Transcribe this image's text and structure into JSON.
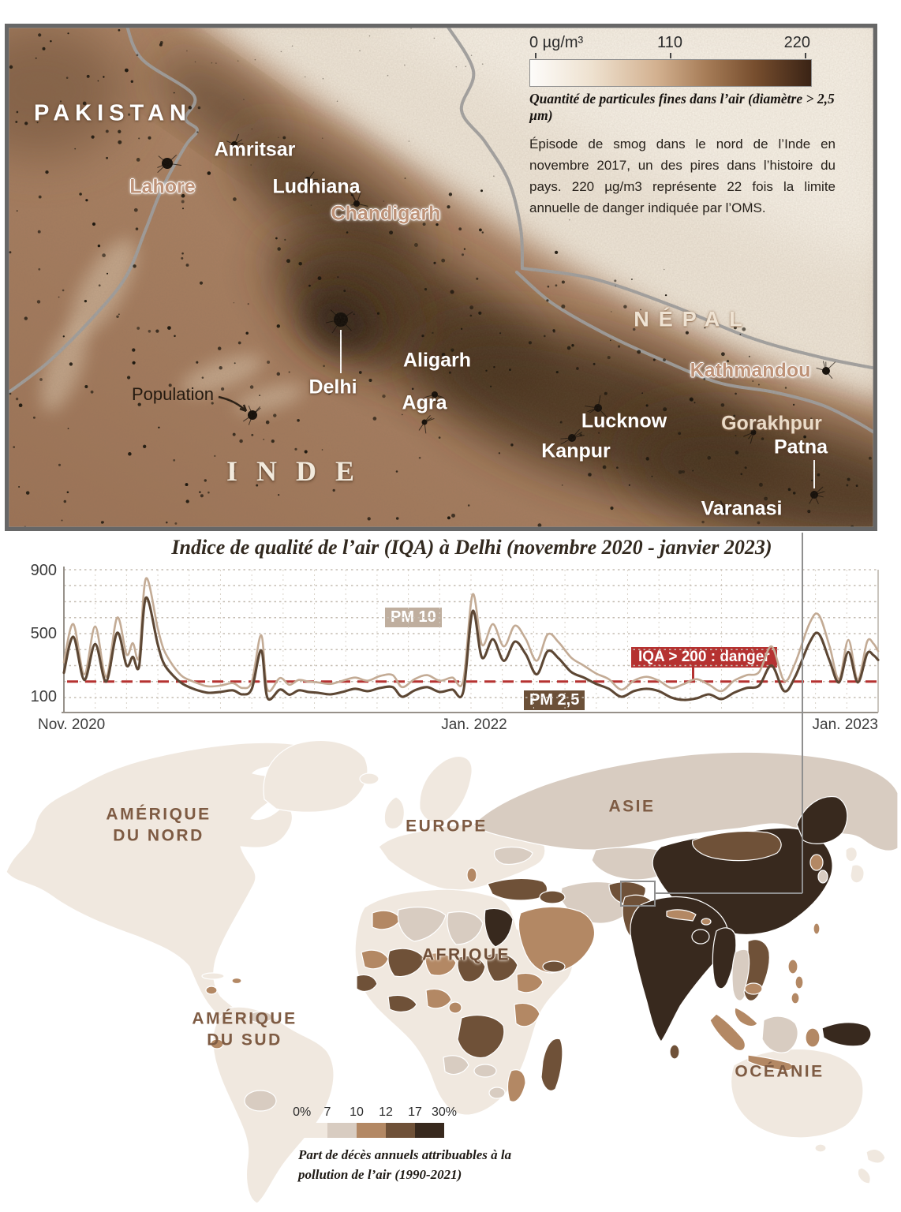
{
  "top_map": {
    "scale_legend": {
      "unit_ticks": [
        "0 µg/m³",
        "110",
        "220"
      ],
      "caption": "Quantité de particules fines dans l’air (diamètre > 2,5 µm)",
      "description": "Épisode de smog dans le nord de l’Inde en novembre 2017, un des pires dans l’histoire du pays. 220 µg/m3 représente 22 fois la limite annuelle de danger indiquée par l’OMS.",
      "gradient": [
        "#fdfcfa",
        "#eee1cf",
        "#d3b190",
        "#a87e59",
        "#774e2e",
        "#3a2315"
      ]
    },
    "palette": {
      "plains": "#ad8466",
      "dark_plains": "#7c5a40",
      "mountains": "#efe6d8",
      "snow": "#f8f2e7",
      "smog": "#46311f",
      "border_line": "#a0a0a0"
    },
    "labels": [
      {
        "id": "pakistan",
        "text": "PAKISTAN"
      },
      {
        "id": "inde",
        "text": "INDE"
      },
      {
        "id": "nepal",
        "text": "NÉPAL"
      },
      {
        "id": "amritsar",
        "text": "Amritsar"
      },
      {
        "id": "lahore",
        "text": "Lahore"
      },
      {
        "id": "ludhiana",
        "text": "Ludhiana"
      },
      {
        "id": "chandigarh",
        "text": "Chandigarh"
      },
      {
        "id": "delhi",
        "text": "Delhi"
      },
      {
        "id": "aligarh",
        "text": "Aligarh"
      },
      {
        "id": "agra",
        "text": "Agra"
      },
      {
        "id": "lucknow",
        "text": "Lucknow"
      },
      {
        "id": "kanpur",
        "text": "Kanpur"
      },
      {
        "id": "gorakhpur",
        "text": "Gorakhpur"
      },
      {
        "id": "patna",
        "text": "Patna"
      },
      {
        "id": "varanasi",
        "text": "Varanasi"
      },
      {
        "id": "kathmandou",
        "text": "Kathmandou"
      },
      {
        "id": "population",
        "text": "Population"
      }
    ]
  },
  "chart_data": {
    "type": "line",
    "title": "Indice de qualité de l’air (IQA) à Delhi (novembre 2020 - janvier 2023)",
    "x_axis": {
      "tick_labels": [
        "Nov. 2020",
        "Jan. 2022",
        "Jan. 2023"
      ],
      "range_months": [
        0,
        26
      ],
      "gridlines": "monthly"
    },
    "y_axis": {
      "tick_labels": [
        900,
        500,
        100
      ],
      "range": [
        0,
        900
      ],
      "gridline_step": 100
    },
    "threshold": {
      "value": 200,
      "label": "IQA > 200 : danger",
      "color": "#b53231"
    },
    "series": [
      {
        "name": "PM 10",
        "color": "#c3ab95",
        "points": [
          [
            0,
            320
          ],
          [
            0.3,
            560
          ],
          [
            0.65,
            245
          ],
          [
            1.0,
            545
          ],
          [
            1.35,
            230
          ],
          [
            1.7,
            600
          ],
          [
            2.0,
            370
          ],
          [
            2.2,
            440
          ],
          [
            2.4,
            355
          ],
          [
            2.62,
            845
          ],
          [
            3.0,
            530
          ],
          [
            3.2,
            395
          ],
          [
            3.5,
            295
          ],
          [
            3.8,
            230
          ],
          [
            4.2,
            195
          ],
          [
            4.6,
            170
          ],
          [
            5.0,
            175
          ],
          [
            5.4,
            190
          ],
          [
            5.7,
            160
          ],
          [
            6.0,
            200
          ],
          [
            6.3,
            490
          ],
          [
            6.5,
            150
          ],
          [
            6.9,
            222
          ],
          [
            7.2,
            180
          ],
          [
            7.5,
            210
          ],
          [
            7.8,
            200
          ],
          [
            8.1,
            195
          ],
          [
            8.5,
            185
          ],
          [
            8.9,
            205
          ],
          [
            9.3,
            225
          ],
          [
            9.7,
            205
          ],
          [
            10.1,
            235
          ],
          [
            10.5,
            240
          ],
          [
            10.8,
            165
          ],
          [
            11.2,
            215
          ],
          [
            11.6,
            240
          ],
          [
            12.0,
            205
          ],
          [
            12.4,
            225
          ],
          [
            12.75,
            205
          ],
          [
            13.05,
            745
          ],
          [
            13.35,
            430
          ],
          [
            13.7,
            560
          ],
          [
            14.05,
            420
          ],
          [
            14.4,
            550
          ],
          [
            14.75,
            465
          ],
          [
            15.1,
            330
          ],
          [
            15.45,
            495
          ],
          [
            15.8,
            445
          ],
          [
            16.2,
            350
          ],
          [
            16.6,
            300
          ],
          [
            17.0,
            250
          ],
          [
            17.4,
            215
          ],
          [
            17.8,
            150
          ],
          [
            18.2,
            205
          ],
          [
            18.6,
            230
          ],
          [
            19.0,
            205
          ],
          [
            19.4,
            160
          ],
          [
            19.8,
            185
          ],
          [
            20.2,
            215
          ],
          [
            20.6,
            180
          ],
          [
            21.0,
            140
          ],
          [
            21.4,
            205
          ],
          [
            21.8,
            240
          ],
          [
            22.2,
            260
          ],
          [
            22.6,
            420
          ],
          [
            23.0,
            205
          ],
          [
            23.35,
            315
          ],
          [
            23.8,
            560
          ],
          [
            24.1,
            618
          ],
          [
            24.45,
            420
          ],
          [
            24.75,
            215
          ],
          [
            25.05,
            460
          ],
          [
            25.35,
            215
          ],
          [
            25.65,
            450
          ],
          [
            25.85,
            438
          ],
          [
            26,
            390
          ]
        ]
      },
      {
        "name": "PM 2,5",
        "color": "#5d4734",
        "points": [
          [
            0,
            255
          ],
          [
            0.3,
            480
          ],
          [
            0.65,
            210
          ],
          [
            1.0,
            435
          ],
          [
            1.35,
            200
          ],
          [
            1.7,
            505
          ],
          [
            2.0,
            300
          ],
          [
            2.2,
            355
          ],
          [
            2.4,
            295
          ],
          [
            2.62,
            725
          ],
          [
            3.0,
            430
          ],
          [
            3.2,
            310
          ],
          [
            3.5,
            235
          ],
          [
            3.8,
            185
          ],
          [
            4.2,
            150
          ],
          [
            4.6,
            130
          ],
          [
            5.0,
            135
          ],
          [
            5.4,
            145
          ],
          [
            5.7,
            120
          ],
          [
            6.0,
            155
          ],
          [
            6.3,
            395
          ],
          [
            6.5,
            98
          ],
          [
            6.9,
            150
          ],
          [
            7.2,
            118
          ],
          [
            7.5,
            145
          ],
          [
            7.8,
            135
          ],
          [
            8.1,
            130
          ],
          [
            8.5,
            120
          ],
          [
            8.9,
            135
          ],
          [
            9.3,
            155
          ],
          [
            9.7,
            140
          ],
          [
            10.1,
            160
          ],
          [
            10.5,
            165
          ],
          [
            10.8,
            105
          ],
          [
            11.2,
            145
          ],
          [
            11.6,
            165
          ],
          [
            12.0,
            135
          ],
          [
            12.4,
            150
          ],
          [
            12.75,
            135
          ],
          [
            13.05,
            640
          ],
          [
            13.35,
            350
          ],
          [
            13.7,
            465
          ],
          [
            14.05,
            330
          ],
          [
            14.4,
            450
          ],
          [
            14.75,
            370
          ],
          [
            15.1,
            245
          ],
          [
            15.45,
            390
          ],
          [
            15.8,
            345
          ],
          [
            16.2,
            260
          ],
          [
            16.6,
            225
          ],
          [
            17.0,
            185
          ],
          [
            17.4,
            155
          ],
          [
            17.8,
            105
          ],
          [
            18.2,
            140
          ],
          [
            18.6,
            155
          ],
          [
            19.0,
            140
          ],
          [
            19.4,
            100
          ],
          [
            19.8,
            85
          ],
          [
            20.2,
            95
          ],
          [
            20.6,
            120
          ],
          [
            21.0,
            90
          ],
          [
            21.4,
            130
          ],
          [
            21.8,
            160
          ],
          [
            22.2,
            175
          ],
          [
            22.6,
            300
          ],
          [
            23.0,
            140
          ],
          [
            23.35,
            230
          ],
          [
            23.8,
            440
          ],
          [
            24.1,
            500
          ],
          [
            24.45,
            330
          ],
          [
            24.75,
            195
          ],
          [
            25.05,
            385
          ],
          [
            25.35,
            195
          ],
          [
            25.65,
            375
          ],
          [
            25.85,
            365
          ],
          [
            26,
            335
          ]
        ]
      }
    ]
  },
  "world_map": {
    "continent_labels": [
      {
        "id": "north-america",
        "text": "AMÉRIQUE\nDU NORD",
        "halo": false
      },
      {
        "id": "south-america",
        "text": "AMÉRIQUE\nDU SUD",
        "halo": false
      },
      {
        "id": "europe",
        "text": "EUROPE",
        "halo": false
      },
      {
        "id": "afrique",
        "text": "AFRIQUE",
        "halo": true
      },
      {
        "id": "asie",
        "text": "ASIE",
        "halo": false
      },
      {
        "id": "oceanie",
        "text": "OCÉANIE",
        "halo": false
      }
    ],
    "legend": {
      "tick_labels": [
        "0%",
        "7",
        "10",
        "12",
        "17",
        "30%"
      ],
      "colors": [
        "#f0e8df",
        "#d8ccc1",
        "#b38864",
        "#6f5138",
        "#38291e"
      ],
      "caption": "Part de décès annuels attribuables à la pollution de l’air (1990-2021)"
    }
  }
}
